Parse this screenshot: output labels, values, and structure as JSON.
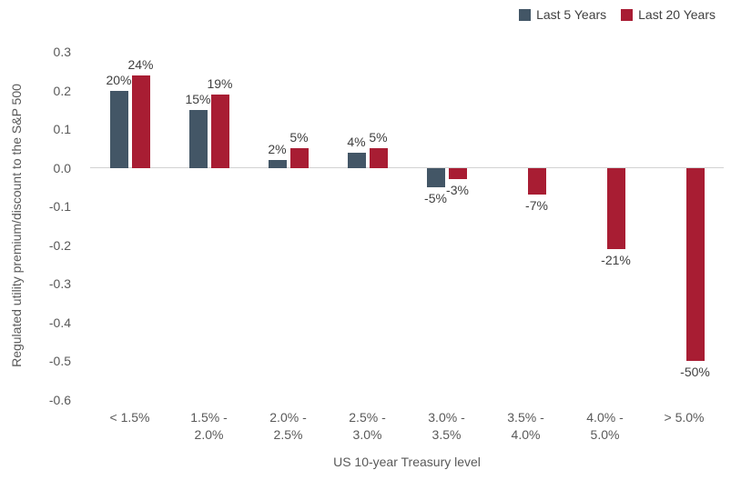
{
  "chart_data": {
    "type": "bar",
    "title": "",
    "xlabel": "US 10-year Treasury level",
    "ylabel": "Regulated utility premium/discount to the S&P 500",
    "ylim": [
      -0.6,
      0.3
    ],
    "grid": false,
    "legend_position": "top-right",
    "categories": [
      "< 1.5%",
      "1.5% - 2.0%",
      "2.0% - 2.5%",
      "2.5% - 3.0%",
      "3.0% - 3.5%",
      "3.5% - 4.0%",
      "4.0% - 5.0%",
      "> 5.0%"
    ],
    "yticks": [
      {
        "value": 0.3,
        "label": "0.3"
      },
      {
        "value": 0.2,
        "label": "0.2"
      },
      {
        "value": 0.1,
        "label": "0.1"
      },
      {
        "value": 0.0,
        "label": "0.0"
      },
      {
        "value": -0.1,
        "label": "-0.1"
      },
      {
        "value": -0.2,
        "label": "-0.2"
      },
      {
        "value": -0.3,
        "label": "-0.3"
      },
      {
        "value": -0.4,
        "label": "-0.4"
      },
      {
        "value": -0.5,
        "label": "-0.5"
      },
      {
        "value": -0.6,
        "label": "-0.6"
      }
    ],
    "series": [
      {
        "name": "Last 5 Years",
        "color": "#435666",
        "values": [
          0.2,
          0.15,
          0.02,
          0.04,
          -0.05,
          null,
          null,
          null
        ],
        "data_labels": [
          "20%",
          "15%",
          "2%",
          "4%",
          "-5%",
          null,
          null,
          null
        ]
      },
      {
        "name": "Last 20 Years",
        "color": "#A81D33",
        "values": [
          0.24,
          0.19,
          0.05,
          0.05,
          -0.03,
          -0.07,
          -0.21,
          -0.5
        ],
        "data_labels": [
          "24%",
          "19%",
          "5%",
          "5%",
          "-3%",
          "-7%",
          "-21%",
          "-50%"
        ]
      }
    ],
    "colors": {
      "series_1": "#435666",
      "series_2": "#A81D33",
      "axis_text": "#595959",
      "data_label_text": "#404040",
      "zero_line": "#d2d2d2"
    }
  }
}
